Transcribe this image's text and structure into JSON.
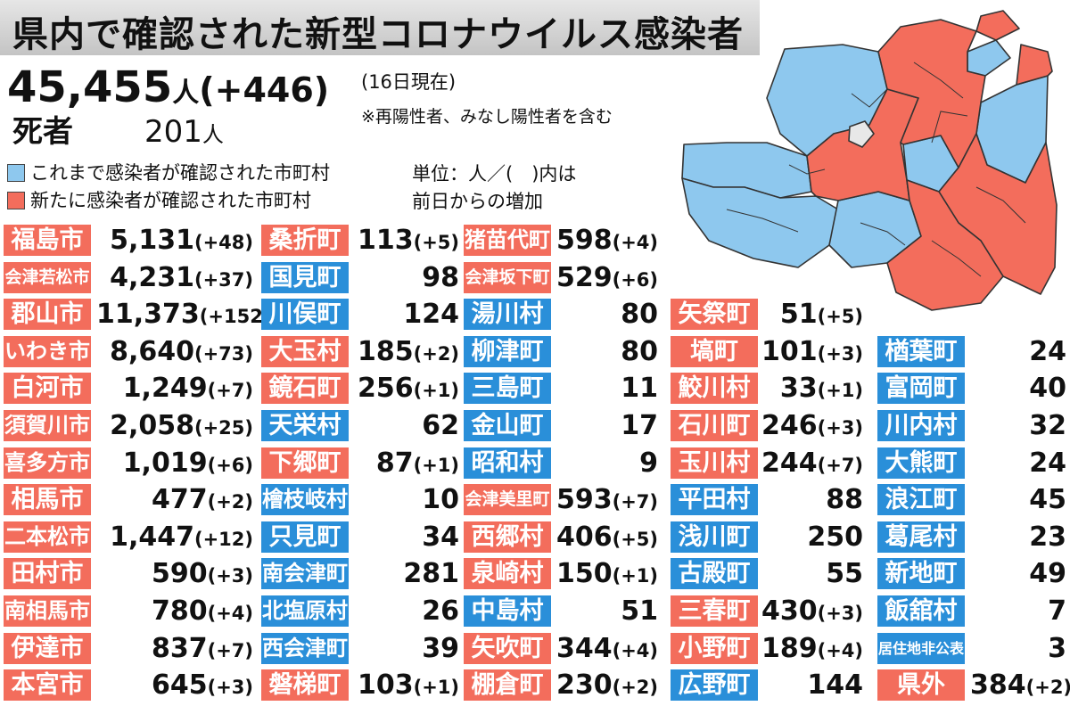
{
  "title": "県内で確認された新型コロナウイルス感染者",
  "total": {
    "value": "45,455",
    "unit": "人",
    "open": "(",
    "diff": "+446",
    "close": ")"
  },
  "as_of": "(16日現在)",
  "note": "※再陽性者、みなし陽性者を含む",
  "deaths": {
    "label": "死者",
    "value": "201",
    "unit": "人"
  },
  "legend": {
    "prev": {
      "text": "これまで感染者が確認された市町村",
      "color": "#8ec8ee"
    },
    "new": {
      "text": "新たに感染者が確認された市町村",
      "color": "#f36d5c"
    }
  },
  "unit_note": {
    "line1": "単位：人／(　)内は",
    "line2": "前日からの増加"
  },
  "colors": {
    "new_label": "#f36d5c",
    "prev_label": "#2a8fd9",
    "map_new": "#f36d5c",
    "map_prev": "#8ec8ee",
    "map_none": "#e8e8e8"
  },
  "columns": [
    [
      {
        "name": "福島市",
        "count": "5,131",
        "diff": "(+48)",
        "status": "new"
      },
      {
        "name": "会津若松市",
        "count": "4,231",
        "diff": "(+37)",
        "status": "new"
      },
      {
        "name": "郡山市",
        "count": "11,373",
        "diff": "(+152)",
        "status": "new"
      },
      {
        "name": "いわき市",
        "count": "8,640",
        "diff": "(+73)",
        "status": "new"
      },
      {
        "name": "白河市",
        "count": "1,249",
        "diff": "(+7)",
        "status": "new"
      },
      {
        "name": "須賀川市",
        "count": "2,058",
        "diff": "(+25)",
        "status": "new"
      },
      {
        "name": "喜多方市",
        "count": "1,019",
        "diff": "(+6)",
        "status": "new"
      },
      {
        "name": "相馬市",
        "count": "477",
        "diff": "(+2)",
        "status": "new"
      },
      {
        "name": "二本松市",
        "count": "1,447",
        "diff": "(+12)",
        "status": "new"
      },
      {
        "name": "田村市",
        "count": "590",
        "diff": "(+3)",
        "status": "new"
      },
      {
        "name": "南相馬市",
        "count": "780",
        "diff": "(+4)",
        "status": "new"
      },
      {
        "name": "伊達市",
        "count": "837",
        "diff": "(+7)",
        "status": "new"
      },
      {
        "name": "本宮市",
        "count": "645",
        "diff": "(+3)",
        "status": "new"
      }
    ],
    [
      {
        "name": "桑折町",
        "count": "113",
        "diff": "(+5)",
        "status": "new"
      },
      {
        "name": "国見町",
        "count": "98",
        "diff": "",
        "status": "prev"
      },
      {
        "name": "川俣町",
        "count": "124",
        "diff": "",
        "status": "prev"
      },
      {
        "name": "大玉村",
        "count": "185",
        "diff": "(+2)",
        "status": "new"
      },
      {
        "name": "鏡石町",
        "count": "256",
        "diff": "(+1)",
        "status": "new"
      },
      {
        "name": "天栄村",
        "count": "62",
        "diff": "",
        "status": "prev"
      },
      {
        "name": "下郷町",
        "count": "87",
        "diff": "(+1)",
        "status": "new"
      },
      {
        "name": "檜枝岐村",
        "count": "10",
        "diff": "",
        "status": "prev"
      },
      {
        "name": "只見町",
        "count": "34",
        "diff": "",
        "status": "prev"
      },
      {
        "name": "南会津町",
        "count": "281",
        "diff": "",
        "status": "prev"
      },
      {
        "name": "北塩原村",
        "count": "26",
        "diff": "",
        "status": "prev"
      },
      {
        "name": "西会津町",
        "count": "39",
        "diff": "",
        "status": "prev"
      },
      {
        "name": "磐梯町",
        "count": "103",
        "diff": "(+1)",
        "status": "new"
      }
    ],
    [
      {
        "name": "猪苗代町",
        "count": "598",
        "diff": "(+4)",
        "status": "new"
      },
      {
        "name": "会津坂下町",
        "count": "529",
        "diff": "(+6)",
        "status": "new"
      },
      {
        "name": "湯川村",
        "count": "80",
        "diff": "",
        "status": "prev"
      },
      {
        "name": "柳津町",
        "count": "80",
        "diff": "",
        "status": "prev"
      },
      {
        "name": "三島町",
        "count": "11",
        "diff": "",
        "status": "prev"
      },
      {
        "name": "金山町",
        "count": "17",
        "diff": "",
        "status": "prev"
      },
      {
        "name": "昭和村",
        "count": "9",
        "diff": "",
        "status": "prev"
      },
      {
        "name": "会津美里町",
        "count": "593",
        "diff": "(+7)",
        "status": "new"
      },
      {
        "name": "西郷村",
        "count": "406",
        "diff": "(+5)",
        "status": "new"
      },
      {
        "name": "泉崎村",
        "count": "150",
        "diff": "(+1)",
        "status": "new"
      },
      {
        "name": "中島村",
        "count": "51",
        "diff": "",
        "status": "prev"
      },
      {
        "name": "矢吹町",
        "count": "344",
        "diff": "(+4)",
        "status": "new"
      },
      {
        "name": "棚倉町",
        "count": "230",
        "diff": "(+2)",
        "status": "new"
      }
    ],
    [
      {
        "name": "矢祭町",
        "count": "51",
        "diff": "(+5)",
        "status": "new"
      },
      {
        "name": "塙町",
        "count": "101",
        "diff": "(+3)",
        "status": "new"
      },
      {
        "name": "鮫川村",
        "count": "33",
        "diff": "(+1)",
        "status": "new"
      },
      {
        "name": "石川町",
        "count": "246",
        "diff": "(+3)",
        "status": "new"
      },
      {
        "name": "玉川村",
        "count": "244",
        "diff": "(+7)",
        "status": "new"
      },
      {
        "name": "平田村",
        "count": "88",
        "diff": "",
        "status": "prev"
      },
      {
        "name": "浅川町",
        "count": "250",
        "diff": "",
        "status": "prev"
      },
      {
        "name": "古殿町",
        "count": "55",
        "diff": "",
        "status": "prev"
      },
      {
        "name": "三春町",
        "count": "430",
        "diff": "(+3)",
        "status": "new"
      },
      {
        "name": "小野町",
        "count": "189",
        "diff": "(+4)",
        "status": "new"
      },
      {
        "name": "広野町",
        "count": "144",
        "diff": "",
        "status": "prev"
      }
    ],
    [
      {
        "name": "楢葉町",
        "count": "24",
        "diff": "",
        "status": "prev"
      },
      {
        "name": "富岡町",
        "count": "40",
        "diff": "",
        "status": "prev"
      },
      {
        "name": "川内村",
        "count": "32",
        "diff": "",
        "status": "prev"
      },
      {
        "name": "大熊町",
        "count": "24",
        "diff": "",
        "status": "prev"
      },
      {
        "name": "浪江町",
        "count": "45",
        "diff": "",
        "status": "prev"
      },
      {
        "name": "葛尾村",
        "count": "23",
        "diff": "",
        "status": "prev"
      },
      {
        "name": "新地町",
        "count": "49",
        "diff": "",
        "status": "prev"
      },
      {
        "name": "飯舘村",
        "count": "7",
        "diff": "",
        "status": "prev"
      },
      {
        "name": "居住地非公表",
        "count": "3",
        "diff": "",
        "status": "prev"
      },
      {
        "name": "県外",
        "count": "384",
        "diff": "(+2)",
        "status": "new"
      }
    ]
  ]
}
